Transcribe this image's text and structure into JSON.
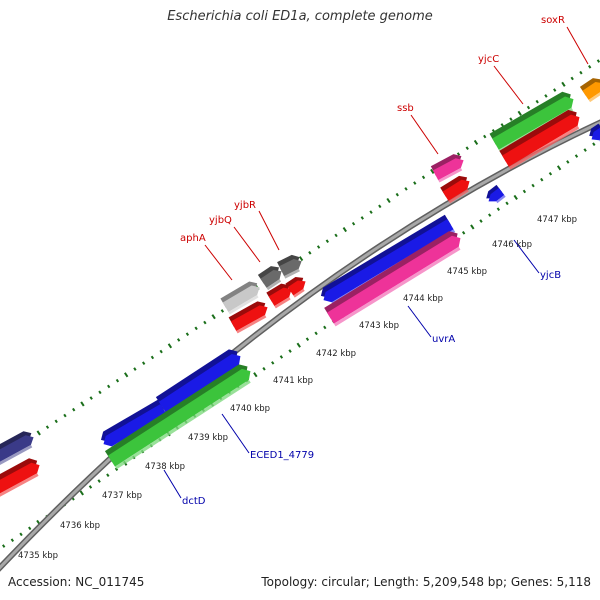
{
  "title": "Escherichia coli ED1a, complete genome",
  "footer": {
    "accession": "Accession: NC_011745",
    "summary": "Topology: circular; Length: 5,209,548 bp; Genes: 5,118"
  },
  "ruler": {
    "unit": "kbp",
    "ticks": [
      {
        "kbp": 4735,
        "label": "4735 kbp"
      },
      {
        "kbp": 4736,
        "label": "4736 kbp"
      },
      {
        "kbp": 4737,
        "label": "4737 kbp"
      },
      {
        "kbp": 4738,
        "label": "4738 kbp"
      },
      {
        "kbp": 4739,
        "label": "4739 kbp"
      },
      {
        "kbp": 4740,
        "label": "4740 kbp"
      },
      {
        "kbp": 4741,
        "label": "4741 kbp"
      },
      {
        "kbp": 4742,
        "label": "4742 kbp"
      },
      {
        "kbp": 4743,
        "label": "4743 kbp"
      },
      {
        "kbp": 4744,
        "label": "4744 kbp"
      },
      {
        "kbp": 4745,
        "label": "4745 kbp"
      },
      {
        "kbp": 4746,
        "label": "4746 kbp"
      },
      {
        "kbp": 4747,
        "label": "4747 kbp"
      }
    ]
  },
  "gene_labels": {
    "top": [
      "aphA",
      "yjbQ",
      "yjbR",
      "ssb",
      "yjcC",
      "soxR"
    ],
    "bottom": [
      "dctD",
      "ECED1_4779",
      "uvrA",
      "yjcB"
    ]
  },
  "colors": {
    "top_label": "#cc0000",
    "bottom_label": "#0000aa",
    "backbone": "#888888",
    "tick": "#1a6e1a",
    "blue": "#1a1ae6",
    "green": "#3cc43c",
    "red": "#ee1111",
    "magenta": "#ee3399",
    "gray_light": "#c8c8c8",
    "gray_dark": "#6a6a6a",
    "navy": "#3a3a88",
    "orange": "#ff9900"
  }
}
